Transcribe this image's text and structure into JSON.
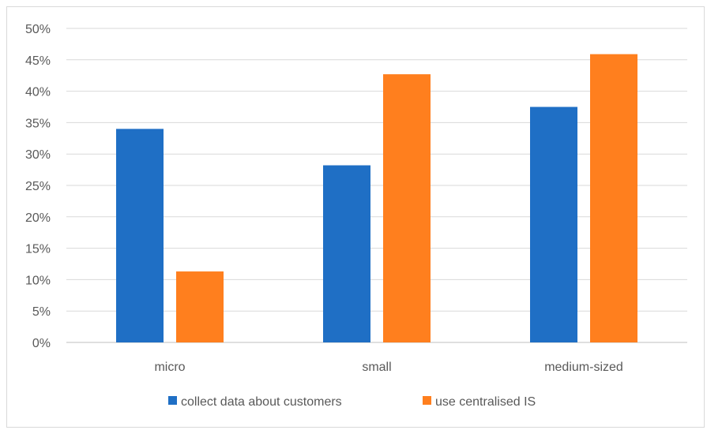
{
  "chart_data": {
    "type": "bar",
    "categories": [
      "micro",
      "small",
      "medium-sized"
    ],
    "series": [
      {
        "name": "collect data about customers",
        "values": [
          34,
          28.2,
          37.5
        ],
        "color": "#1f6fc5"
      },
      {
        "name": "use centralised IS",
        "values": [
          11.3,
          42.7,
          45.9
        ],
        "color": "#ff7f1e"
      }
    ],
    "ylim": [
      0,
      50
    ],
    "yticks": [
      "0%",
      "5%",
      "10%",
      "15%",
      "20%",
      "25%",
      "30%",
      "35%",
      "40%",
      "45%",
      "50%"
    ],
    "ytick_step": 5,
    "grid": true,
    "legend_position": "bottom",
    "title": "",
    "xlabel": "",
    "ylabel": ""
  }
}
